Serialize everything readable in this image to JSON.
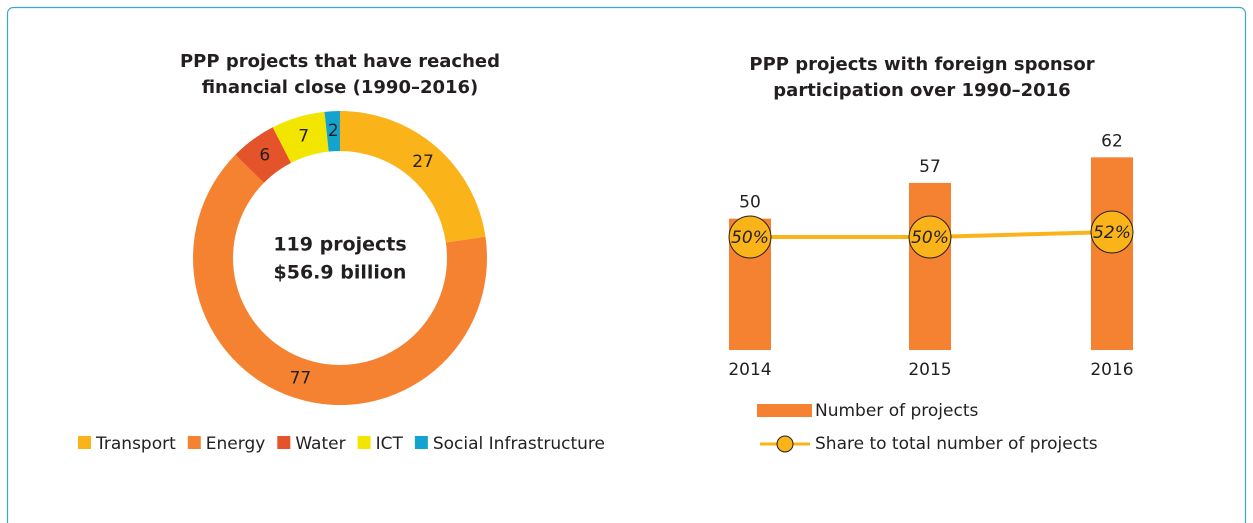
{
  "chart_data": [
    {
      "type": "donut",
      "title": [
        "PPP projects that have reached",
        "financial close (1990–2016)"
      ],
      "center_text": [
        "119 projects",
        "$56.9 billion"
      ],
      "categories": [
        "Transport",
        "Energy",
        "Water",
        "ICT",
        "Social Infrastructure"
      ],
      "values": [
        27,
        77,
        6,
        7,
        2
      ],
      "colors": [
        "#fbb31a",
        "#f58230",
        "#e4532a",
        "#f2e600",
        "#12a3cf"
      ],
      "legend": "bottom"
    },
    {
      "type": "combo",
      "title": [
        "PPP projects with foreign sponsor",
        "participation over 1990–2016"
      ],
      "categories": [
        "2014",
        "2015",
        "2016"
      ],
      "ylim": [
        20,
        65
      ],
      "y2lim": [
        -4,
        88
      ],
      "series": [
        {
          "name": "Number of projects",
          "type": "bar",
          "color": "#f58230",
          "values": [
            50,
            57,
            62
          ]
        },
        {
          "name": "Share to total number of projects",
          "type": "line",
          "axis": "y2",
          "color": "#fbb31a",
          "values": [
            50,
            50,
            52
          ],
          "value_labels": [
            "50%",
            "50%",
            "52%"
          ]
        }
      ],
      "legend": "bottom"
    }
  ]
}
